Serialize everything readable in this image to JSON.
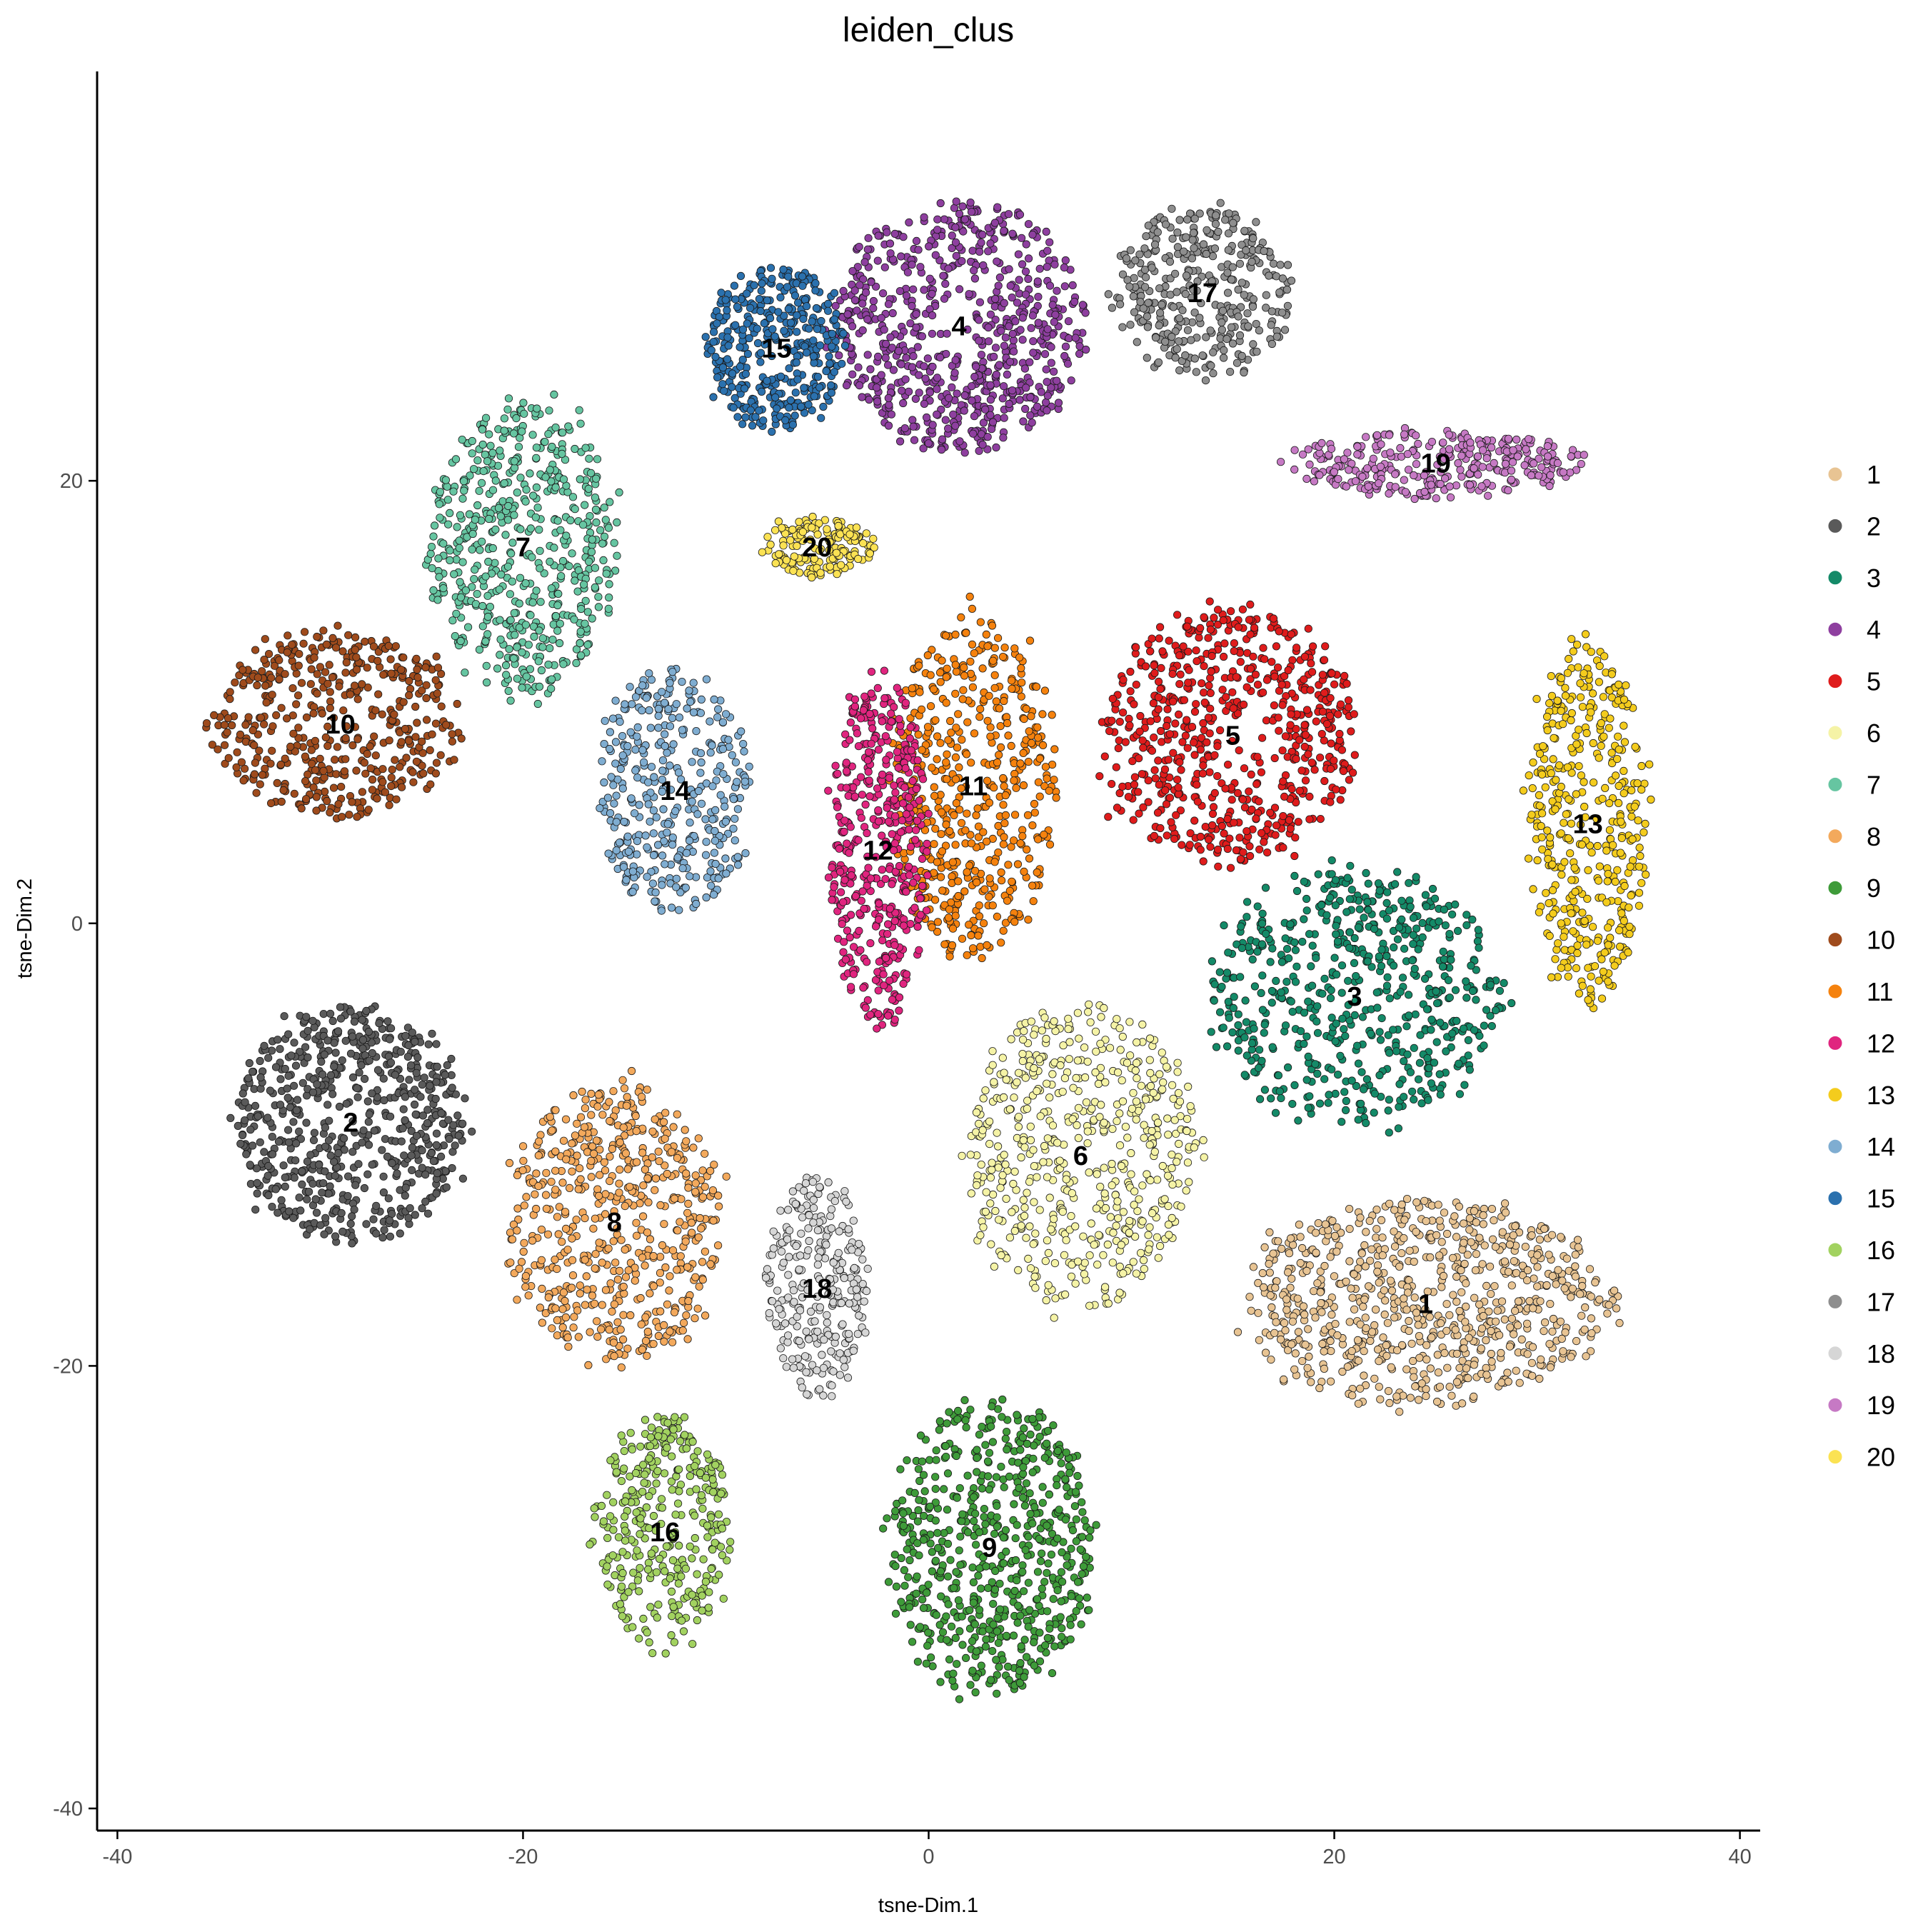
{
  "chart_data": {
    "type": "scatter",
    "title": "leiden_clus",
    "xlabel": "tsne-Dim.1",
    "ylabel": "tsne-Dim.2",
    "xlim": [
      -41,
      41
    ],
    "ylim": [
      -41,
      38.5
    ],
    "xticks": [
      -40,
      -20,
      0,
      20,
      40
    ],
    "yticks": [
      -40,
      -20,
      0,
      20
    ],
    "xtick_labels": [
      "-40",
      "-20",
      "0",
      "20",
      "40"
    ],
    "ytick_labels": [
      "-40",
      "-20",
      "0",
      "20"
    ],
    "grid": false,
    "legend_position": "right",
    "legend": [
      {
        "name": "1",
        "color": "#E8C493"
      },
      {
        "name": "2",
        "color": "#5A5A5A"
      },
      {
        "name": "3",
        "color": "#148A68"
      },
      {
        "name": "4",
        "color": "#8E3F9F"
      },
      {
        "name": "5",
        "color": "#DF1C1C"
      },
      {
        "name": "6",
        "color": "#F5F3A6"
      },
      {
        "name": "7",
        "color": "#66C5A1"
      },
      {
        "name": "8",
        "color": "#F3A95C"
      },
      {
        "name": "9",
        "color": "#3E9B39"
      },
      {
        "name": "10",
        "color": "#9F4B1C"
      },
      {
        "name": "11",
        "color": "#F5820E"
      },
      {
        "name": "12",
        "color": "#E0257F"
      },
      {
        "name": "13",
        "color": "#F4CC1D"
      },
      {
        "name": "14",
        "color": "#7FADD1"
      },
      {
        "name": "15",
        "color": "#2B71AE"
      },
      {
        "name": "16",
        "color": "#A2D260"
      },
      {
        "name": "17",
        "color": "#8E8E8E"
      },
      {
        "name": "18",
        "color": "#D6D6D6"
      },
      {
        "name": "19",
        "color": "#C679C4"
      },
      {
        "name": "20",
        "color": "#FBE253"
      }
    ],
    "clusters": [
      {
        "label": "1",
        "center": [
          24.5,
          -17.2
        ],
        "spread": [
          9.5,
          4.8
        ],
        "count": 760
      },
      {
        "label": "2",
        "center": [
          -28.5,
          -9.0
        ],
        "spread": [
          6.0,
          5.6
        ],
        "count": 640
      },
      {
        "label": "3",
        "center": [
          21.0,
          -3.3
        ],
        "spread": [
          7.5,
          6.0
        ],
        "count": 600
      },
      {
        "label": "4",
        "center": [
          1.5,
          27.0
        ],
        "spread": [
          6.5,
          5.8
        ],
        "count": 700
      },
      {
        "label": "5",
        "center": [
          15.0,
          8.5
        ],
        "spread": [
          6.5,
          6.0
        ],
        "count": 640
      },
      {
        "label": "6",
        "center": [
          7.5,
          -10.5
        ],
        "spread": [
          6.0,
          7.0
        ],
        "count": 560
      },
      {
        "label": "7",
        "center": [
          -20.0,
          17.0
        ],
        "spread": [
          4.8,
          6.8
        ],
        "count": 560
      },
      {
        "label": "8",
        "center": [
          -15.5,
          -13.5
        ],
        "spread": [
          5.6,
          6.5
        ],
        "count": 560
      },
      {
        "label": "9",
        "center": [
          3.0,
          -28.2
        ],
        "spread": [
          5.2,
          7.0
        ],
        "count": 640
      },
      {
        "label": "10",
        "center": [
          -29.0,
          9.0
        ],
        "spread": [
          6.5,
          4.4
        ],
        "count": 460
      },
      {
        "label": "11",
        "center": [
          2.2,
          6.2
        ],
        "spread": [
          4.2,
          8.0
        ],
        "count": 520
      },
      {
        "label": "12",
        "center": [
          -2.5,
          3.3
        ],
        "spread": [
          2.5,
          8.2
        ],
        "count": 440
      },
      {
        "label": "13",
        "center": [
          32.5,
          4.5
        ],
        "spread": [
          3.0,
          8.5
        ],
        "count": 420
      },
      {
        "label": "14",
        "center": [
          -12.5,
          6.0
        ],
        "spread": [
          4.0,
          5.8
        ],
        "count": 380
      },
      {
        "label": "15",
        "center": [
          -7.5,
          26.0
        ],
        "spread": [
          3.6,
          3.8
        ],
        "count": 380
      },
      {
        "label": "16",
        "center": [
          -13.0,
          -27.5
        ],
        "spread": [
          3.5,
          5.5
        ],
        "count": 340
      },
      {
        "label": "17",
        "center": [
          13.5,
          28.5
        ],
        "spread": [
          4.6,
          4.0
        ],
        "count": 360
      },
      {
        "label": "18",
        "center": [
          -5.5,
          -16.5
        ],
        "spread": [
          2.6,
          5.2
        ],
        "count": 280
      },
      {
        "label": "19",
        "center": [
          25.0,
          20.8
        ],
        "spread": [
          7.5,
          1.6
        ],
        "count": 320
      },
      {
        "label": "20",
        "center": [
          -5.5,
          17.0
        ],
        "spread": [
          2.8,
          1.4
        ],
        "count": 160
      }
    ]
  }
}
